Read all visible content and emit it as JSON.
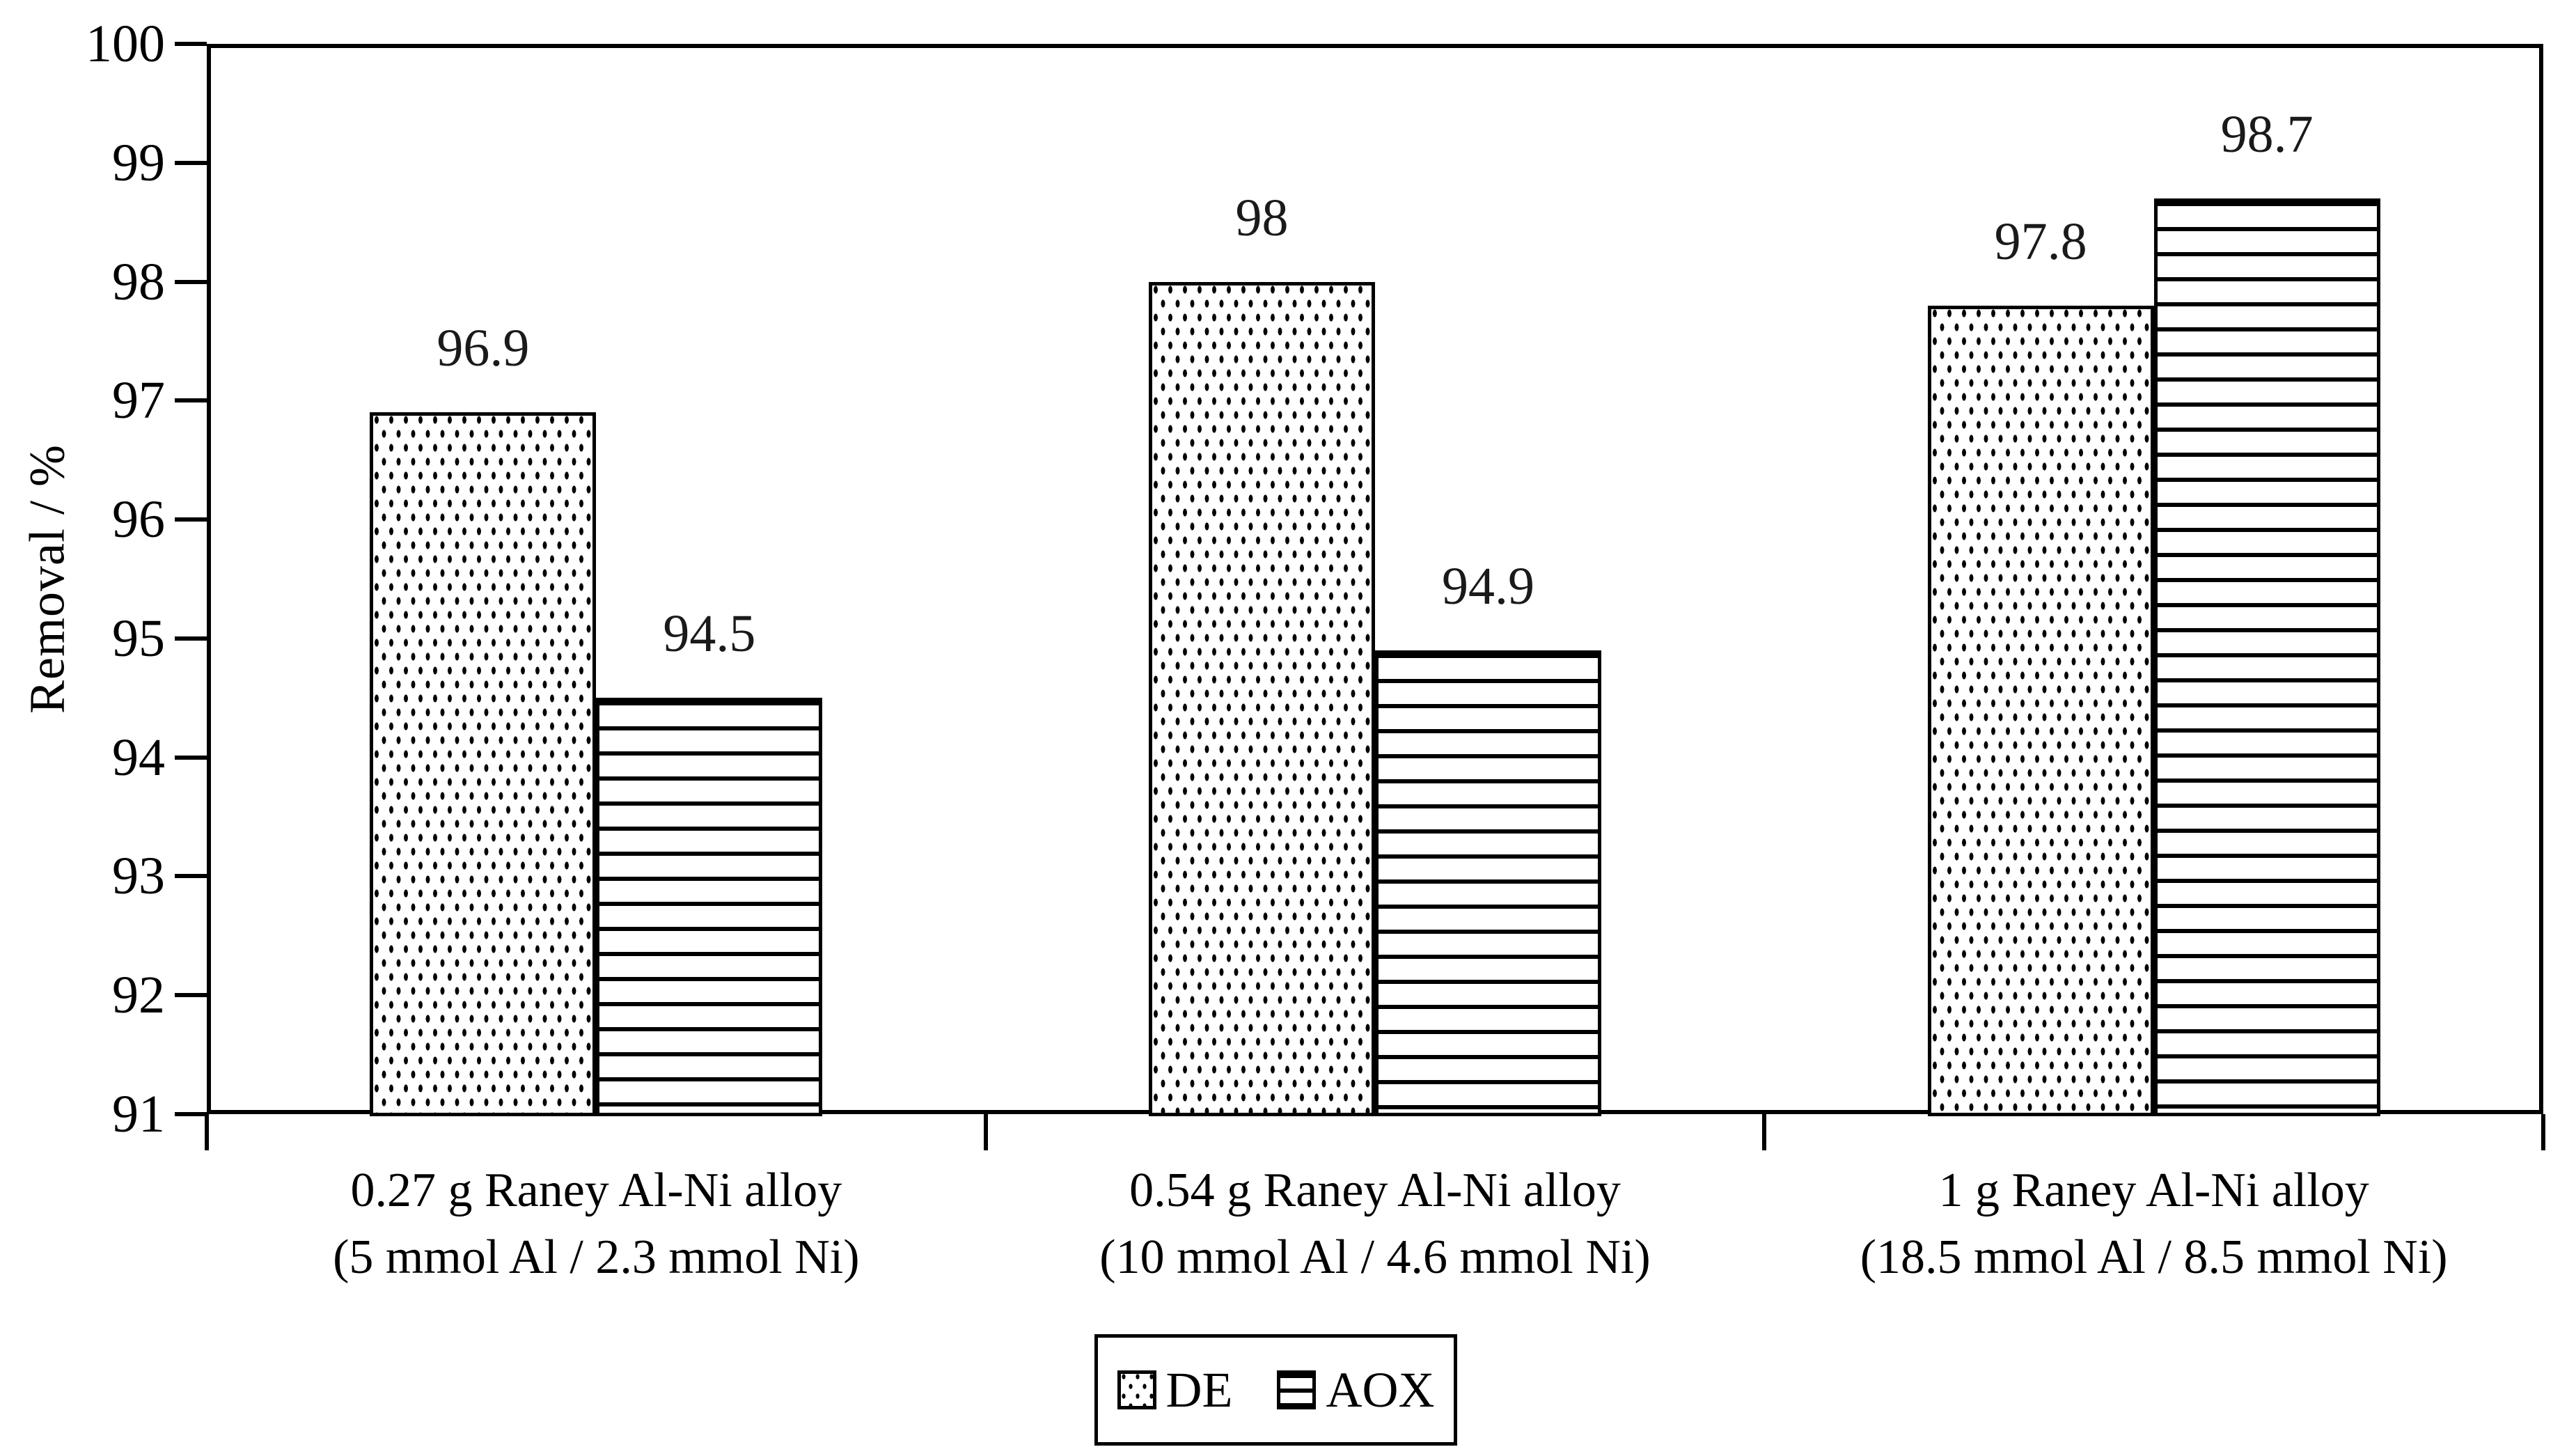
{
  "chart_data": {
    "type": "bar",
    "title": "",
    "xlabel": "",
    "ylabel": "Removal / %",
    "ylim": [
      91,
      100
    ],
    "ytick_step": 1,
    "ytick_labels": [
      "91",
      "92",
      "93",
      "94",
      "95",
      "96",
      "97",
      "98",
      "99",
      "100"
    ],
    "grid": false,
    "legend_position": "bottom",
    "categories": [
      {
        "line1": "0.27 g Raney Al-Ni alloy",
        "line2": "(5 mmol Al / 2.3 mmol Ni)"
      },
      {
        "line1": "0.54 g Raney Al-Ni alloy",
        "line2": "(10 mmol Al / 4.6 mmol Ni)"
      },
      {
        "line1": "1 g Raney Al-Ni alloy",
        "line2": "(18.5 mmol Al / 8.5 mmol Ni)"
      }
    ],
    "series": [
      {
        "name": "DE",
        "pattern": "dots",
        "values": [
          96.9,
          98,
          97.8
        ],
        "value_labels": [
          "96.9",
          "98",
          "97.8"
        ]
      },
      {
        "name": "AOX",
        "pattern": "hlines",
        "values": [
          94.5,
          94.9,
          98.7
        ],
        "value_labels": [
          "94.5",
          "94.9",
          "98.7"
        ]
      }
    ],
    "colors": {
      "ink": "#000000",
      "background": "#ffffff",
      "value_label_text": "#1a1a1a"
    }
  }
}
